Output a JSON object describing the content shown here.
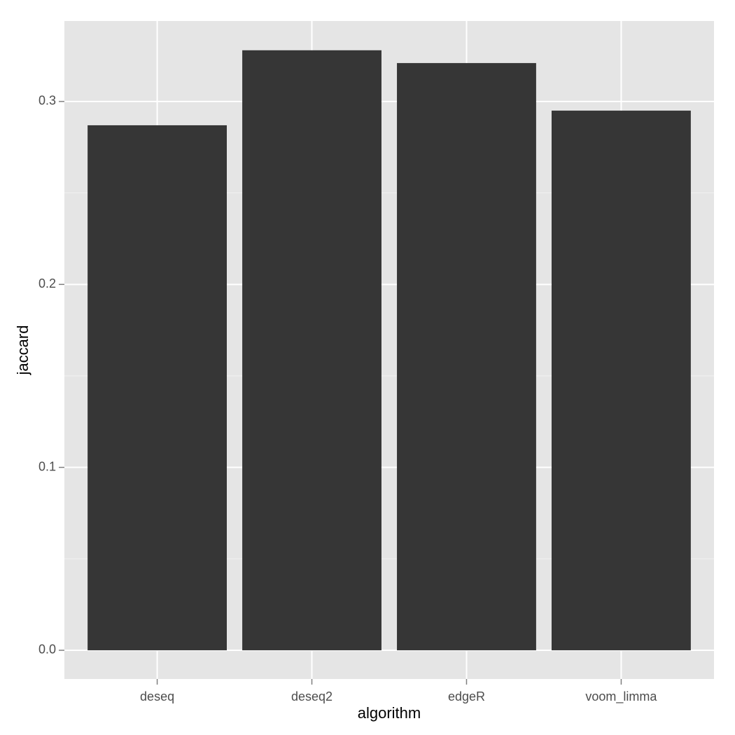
{
  "chart_data": {
    "type": "bar",
    "categories": [
      "deseq",
      "deseq2",
      "edgeR",
      "voom_limma"
    ],
    "values": [
      0.287,
      0.328,
      0.321,
      0.295
    ],
    "color": "#363636",
    "x_label": "algorithm",
    "y_label": "jaccard",
    "ylim": [
      -0.0157,
      0.344
    ],
    "yticks": [
      {
        "value": 0,
        "label": "0.0"
      },
      0.1,
      0.2,
      0.3
    ],
    "yminor": [
      0.05,
      0.15,
      0.25
    ],
    "grid": true
  }
}
